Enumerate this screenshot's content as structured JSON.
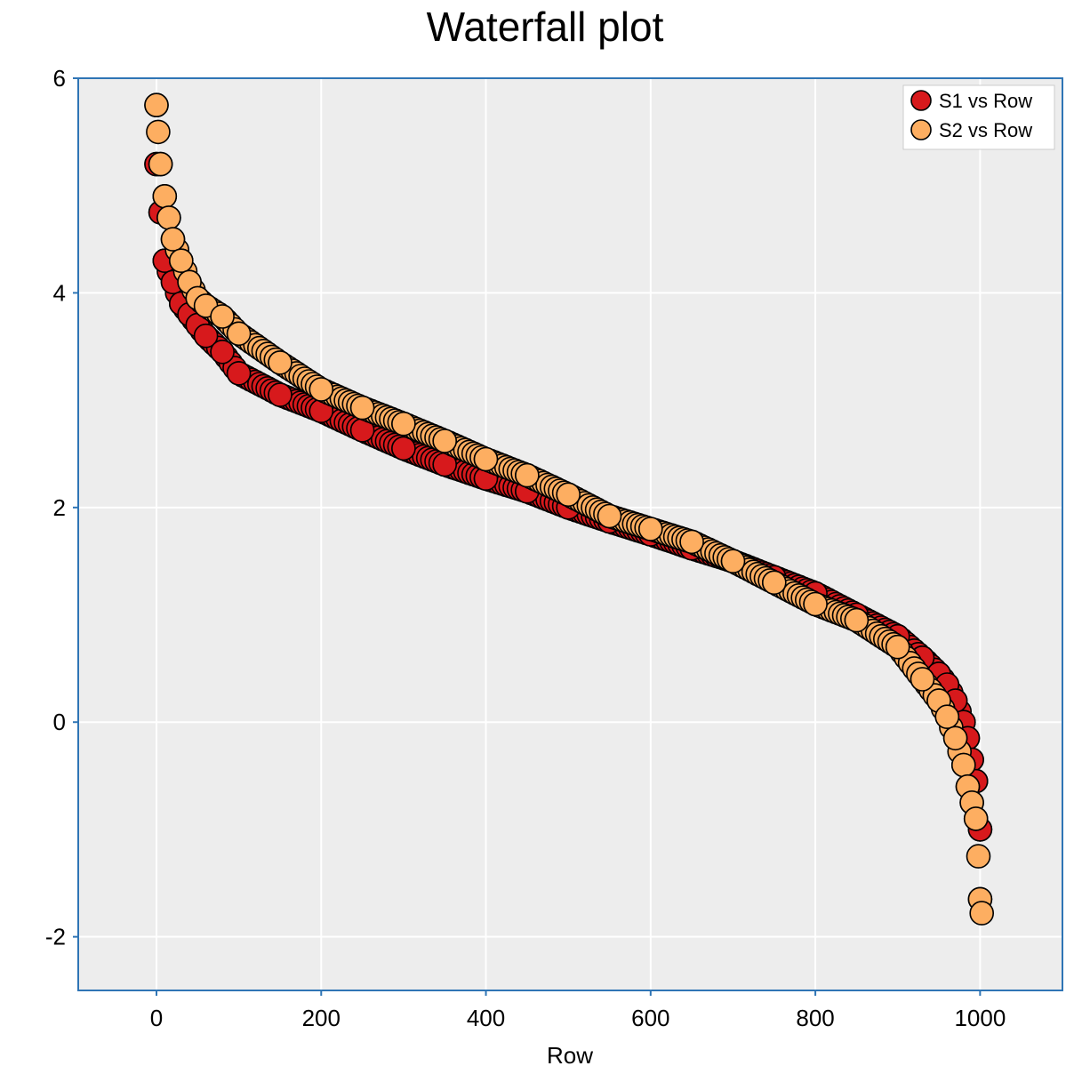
{
  "colors": {
    "series1": "#d7191c",
    "series2": "#fdae61",
    "plot_bg": "#ededed",
    "grid": "#ffffff",
    "frame": "#2f75b5",
    "marker_edge": "#000000"
  },
  "chart_data": {
    "type": "scatter",
    "title": "Waterfall plot",
    "xlabel": "Row",
    "ylabel": "",
    "xlim": [
      -95,
      1100
    ],
    "ylim": [
      -2.5,
      6
    ],
    "xticks": [
      0,
      200,
      400,
      600,
      800,
      1000
    ],
    "xtick_labels": [
      "0",
      "200",
      "400",
      "600",
      "800",
      "1000"
    ],
    "yticks": [
      -2,
      0,
      2,
      4,
      6
    ],
    "ytick_labels": [
      "-2",
      "0",
      "2",
      "4",
      "6"
    ],
    "grid": true,
    "legend_position": "top-right",
    "series": [
      {
        "name": "S1 vs Row",
        "color": "#d7191c",
        "x": [
          0,
          5,
          10,
          20,
          30,
          40,
          50,
          60,
          80,
          100,
          150,
          200,
          250,
          300,
          350,
          400,
          450,
          500,
          550,
          600,
          650,
          700,
          750,
          800,
          850,
          900,
          930,
          950,
          960,
          970,
          980,
          985,
          990,
          995,
          1000
        ],
        "y": [
          5.2,
          4.75,
          4.3,
          4.1,
          3.9,
          3.8,
          3.7,
          3.6,
          3.45,
          3.25,
          3.05,
          2.9,
          2.72,
          2.55,
          2.4,
          2.27,
          2.15,
          2.0,
          1.87,
          1.75,
          1.62,
          1.5,
          1.35,
          1.2,
          1.0,
          0.8,
          0.6,
          0.45,
          0.35,
          0.2,
          0.0,
          -0.15,
          -0.35,
          -0.55,
          -1.0
        ]
      },
      {
        "name": "S2 vs Row",
        "color": "#fdae61",
        "x": [
          0,
          2,
          5,
          10,
          15,
          20,
          30,
          40,
          50,
          60,
          80,
          100,
          150,
          200,
          250,
          300,
          350,
          400,
          450,
          500,
          550,
          600,
          650,
          700,
          750,
          800,
          850,
          900,
          930,
          950,
          960,
          970,
          980,
          985,
          990,
          995,
          998,
          1000,
          1002
        ],
        "y": [
          5.75,
          5.5,
          5.2,
          4.9,
          4.7,
          4.5,
          4.3,
          4.1,
          3.95,
          3.88,
          3.78,
          3.62,
          3.35,
          3.1,
          2.93,
          2.78,
          2.62,
          2.45,
          2.3,
          2.12,
          1.92,
          1.8,
          1.68,
          1.5,
          1.3,
          1.1,
          0.95,
          0.7,
          0.4,
          0.2,
          0.05,
          -0.15,
          -0.4,
          -0.6,
          -0.75,
          -0.9,
          -1.25,
          -1.65,
          -1.78
        ]
      }
    ]
  }
}
